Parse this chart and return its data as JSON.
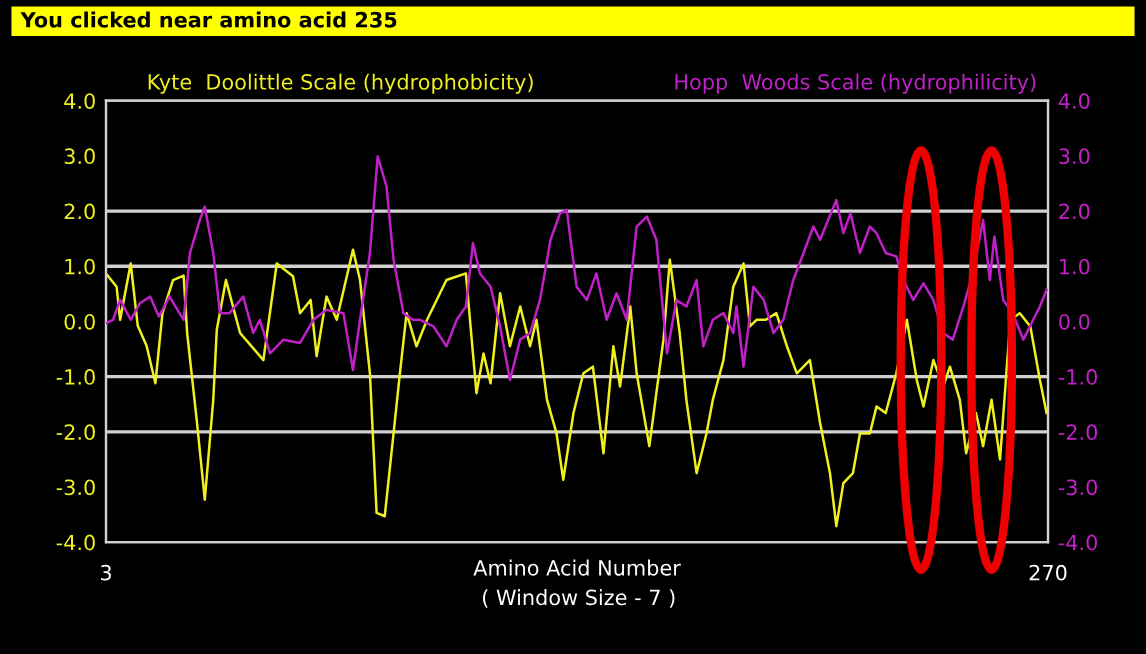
{
  "chart_data": {
    "type": "line",
    "title": "You clicked near amino acid 235",
    "xlabel": "Amino Acid Number",
    "annotations": [
      "( Window Size - 7 )"
    ],
    "xlim": [
      3,
      270
    ],
    "xticks": [
      3,
      270
    ],
    "ylim": [
      -4,
      4
    ],
    "yticks": [
      {
        "value": -4,
        "label": "-4.0"
      },
      {
        "value": -3,
        "label": "-3.0"
      },
      {
        "value": -2,
        "label": "-2.0"
      },
      {
        "value": -1,
        "label": "-1.0"
      },
      {
        "value": 0,
        "label": "0.0"
      },
      {
        "value": 1,
        "label": "1.0"
      },
      {
        "value": 2,
        "label": "2.0"
      },
      {
        "value": 3,
        "label": "3.0"
      },
      {
        "value": 4,
        "label": "4.0"
      }
    ],
    "y2lim": [
      -4,
      4
    ],
    "y2ticks": [
      {
        "value": -4,
        "label": "-4.0"
      },
      {
        "value": -3,
        "label": "-3.0"
      },
      {
        "value": -2,
        "label": "-2.0"
      },
      {
        "value": -1,
        "label": "-1.0"
      },
      {
        "value": 0,
        "label": "0.0"
      },
      {
        "value": 1,
        "label": "1.0"
      },
      {
        "value": 2,
        "label": "2.0"
      },
      {
        "value": 3,
        "label": "3.0"
      },
      {
        "value": 4,
        "label": "4.0"
      }
    ],
    "grid": false,
    "legend": false,
    "ref_lines": [
      {
        "axis": "y",
        "value": 2,
        "label": null,
        "color": "#d0d0d0"
      },
      {
        "axis": "y",
        "value": 1,
        "label": null,
        "color": "#d0d0d0"
      },
      {
        "axis": "y",
        "value": -1,
        "label": null,
        "color": "#d0d0d0"
      },
      {
        "axis": "y",
        "value": -2,
        "label": null,
        "color": "#d0d0d0"
      }
    ],
    "series": [
      {
        "name": "Kyte  Doolittle Scale (hydrophobicity)",
        "color": "#f0f020",
        "x": [
          3,
          6,
          7,
          10,
          12,
          14.5,
          17,
          19,
          22,
          25,
          26,
          28.7,
          31,
          33.4,
          34.4,
          37,
          41,
          47.6,
          51.4,
          56,
          58,
          61,
          62.7,
          65.5,
          68.4,
          73,
          75,
          77.8,
          79.7,
          82,
          84.5,
          86.3,
          88.2,
          91,
          94,
          99.5,
          105,
          108,
          110,
          112,
          114.7,
          117.5,
          120.4,
          123.2,
          125,
          128,
          130.7,
          132.6,
          135.5,
          138.3,
          141,
          144,
          146.8,
          148.7,
          151.6,
          153.4,
          157,
          161,
          162.8,
          165.6,
          167.5,
          170.4,
          173.2,
          175,
          178,
          180.8,
          183.7,
          185.5,
          187.4,
          190,
          193,
          196,
          198.8,
          202.5,
          205.4,
          208.2,
          210,
          212,
          214.7,
          216.7,
          219.5,
          221.4,
          224,
          227,
          230,
          232.8,
          234.7,
          237.5,
          240.3,
          242.2,
          245,
          246.8,
          249.6,
          251.6,
          254,
          256.4,
          259.3,
          262,
          265,
          267.7,
          269.6
        ],
        "values": [
          0.87,
          0.63,
          0.03,
          1.05,
          -0.08,
          -0.44,
          -1.12,
          0.15,
          0.75,
          0.83,
          -0.21,
          -1.78,
          -3.23,
          -1.42,
          -0.15,
          0.75,
          -0.21,
          -0.7,
          1.05,
          0.82,
          0.15,
          0.39,
          -0.63,
          0.45,
          0.03,
          1.3,
          0.75,
          -0.94,
          -3.47,
          -3.53,
          -2.03,
          -0.94,
          0.15,
          -0.45,
          0.03,
          0.75,
          0.87,
          -1.3,
          -0.58,
          -1.12,
          0.51,
          -0.45,
          0.27,
          -0.45,
          0.03,
          -1.42,
          -2.03,
          -2.87,
          -1.66,
          -0.94,
          -0.82,
          -2.39,
          -0.45,
          -1.18,
          0.27,
          -0.94,
          -2.26,
          -0.33,
          1.12,
          -0.21,
          -1.42,
          -2.75,
          -2.03,
          -1.42,
          -0.7,
          0.63,
          1.05,
          -0.09,
          0.03,
          0.03,
          0.15,
          -0.45,
          -0.94,
          -0.7,
          -1.84,
          -2.75,
          -3.71,
          -2.93,
          -2.75,
          -2.03,
          -2.03,
          -1.54,
          -1.66,
          -0.94,
          0.03,
          -1.06,
          -1.54,
          -0.7,
          -1.18,
          -0.82,
          -1.42,
          -2.39,
          -1.66,
          -2.26,
          -1.42,
          -2.5,
          0.03,
          0.15,
          -0.09,
          -1.06,
          -1.66
        ]
      },
      {
        "name": "Hopp  Woods Scale (hydrophilicity)",
        "color": "#c020c8",
        "axis": "y2",
        "x": [
          3,
          5,
          7,
          10,
          12.6,
          15.5,
          18,
          21,
          25,
          26.8,
          29.6,
          31,
          33.4,
          35.3,
          38,
          41.9,
          44.7,
          46.6,
          49.5,
          53.3,
          58,
          61.8,
          65.5,
          70.3,
          73,
          75,
          77.8,
          80,
          82.5,
          84.5,
          87.3,
          90,
          92,
          95.8,
          99.5,
          102.4,
          105,
          107,
          109,
          112,
          114.7,
          117.5,
          120.4,
          123.2,
          126,
          129,
          131.7,
          133.6,
          136.4,
          139.3,
          142,
          144.9,
          147.7,
          150.6,
          153.4,
          156.3,
          159,
          162,
          164.7,
          167.5,
          170.4,
          172.3,
          175,
          178,
          180.8,
          181.7,
          183.7,
          186.5,
          189.4,
          192.2,
          195,
          197.8,
          200.7,
          203.5,
          205.4,
          210,
          212,
          214,
          216.7,
          219.5,
          221.4,
          224,
          227,
          229,
          231.8,
          234.7,
          237.5,
          240.3,
          243,
          246,
          248.7,
          251.6,
          253.5,
          254.8,
          257.3,
          260,
          263,
          265.8,
          267.7,
          269.6
        ],
        "values": [
          -0.03,
          0.03,
          0.39,
          0.03,
          0.33,
          0.45,
          0.09,
          0.45,
          0.03,
          1.24,
          1.84,
          2.08,
          1.24,
          0.15,
          0.15,
          0.45,
          -0.21,
          0.03,
          -0.58,
          -0.33,
          -0.39,
          0.03,
          0.21,
          0.15,
          -0.88,
          0.03,
          1.24,
          2.99,
          2.45,
          1.12,
          0.15,
          0.03,
          0.03,
          -0.09,
          -0.45,
          0.03,
          0.27,
          1.42,
          0.87,
          0.63,
          -0.09,
          -1.06,
          -0.33,
          -0.21,
          0.39,
          1.48,
          1.96,
          2.02,
          0.63,
          0.39,
          0.87,
          0.03,
          0.51,
          0.03,
          1.72,
          1.9,
          1.48,
          -0.58,
          0.39,
          0.27,
          0.75,
          -0.45,
          0.03,
          0.15,
          -0.21,
          0.27,
          -0.82,
          0.63,
          0.39,
          -0.21,
          0.03,
          0.75,
          1.24,
          1.72,
          1.48,
          2.2,
          1.6,
          1.96,
          1.24,
          1.72,
          1.6,
          1.24,
          1.18,
          0.75,
          0.39,
          0.69,
          0.39,
          -0.21,
          -0.33,
          0.27,
          0.87,
          1.84,
          0.75,
          1.54,
          0.39,
          0.15,
          -0.33,
          0.03,
          0.27,
          0.57
        ]
      }
    ]
  }
}
